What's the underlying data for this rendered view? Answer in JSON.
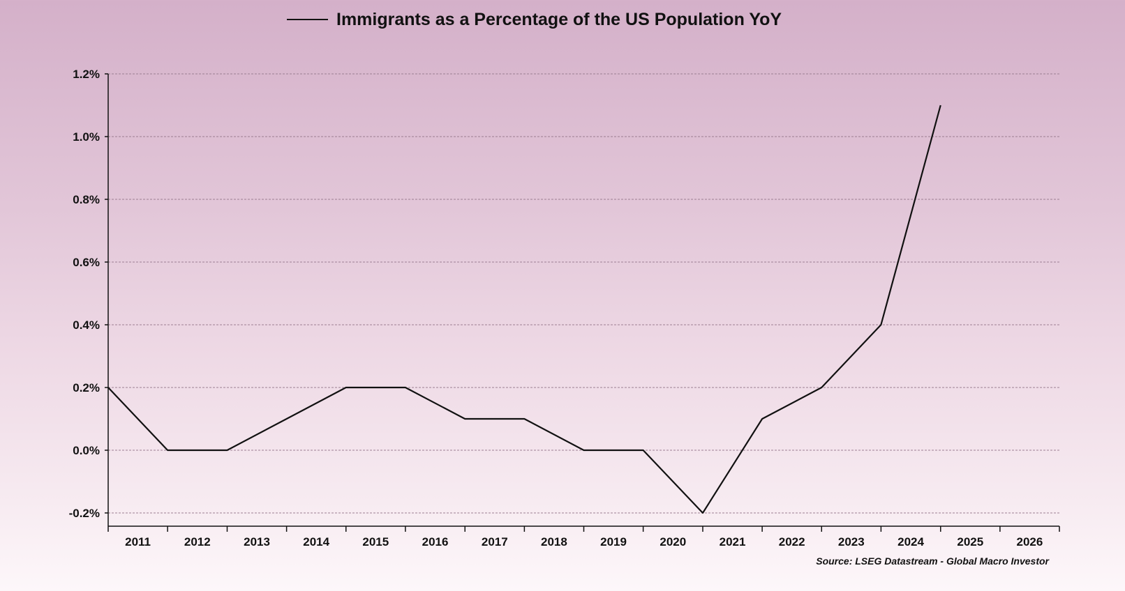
{
  "chart_data": {
    "type": "line",
    "title": "Immigrants as a Percentage of the US Population YoY",
    "legend_placement": "top-center",
    "source": "Source: LSEG Datastream - Global Macro Investor",
    "grid": true,
    "y_ticks": [
      "1.2%",
      "1.0%",
      "0.8%",
      "0.6%",
      "0.4%",
      "0.2%",
      "0.0%",
      "-0.2%"
    ],
    "y_tick_values": [
      1.2,
      1.0,
      0.8,
      0.6,
      0.4,
      0.2,
      0.0,
      -0.2
    ],
    "ylim": [
      -0.2,
      1.2
    ],
    "x_ticks": [
      "2011",
      "2012",
      "2013",
      "2014",
      "2015",
      "2016",
      "2017",
      "2018",
      "2019",
      "2020",
      "2021",
      "2022",
      "2023",
      "2024",
      "2025",
      "2026"
    ],
    "xlim": [
      "2011-01-01",
      "2027-01-01"
    ],
    "series": [
      {
        "color": "#111111",
        "points": [
          {
            "x": "2011-01-01",
            "y": 0.2
          },
          {
            "x": "2012-01-01",
            "y": 0.0
          },
          {
            "x": "2013-01-01",
            "y": 0.0
          },
          {
            "x": "2014-01-01",
            "y": 0.1
          },
          {
            "x": "2015-01-01",
            "y": 0.2
          },
          {
            "x": "2016-01-01",
            "y": 0.2
          },
          {
            "x": "2017-01-01",
            "y": 0.1
          },
          {
            "x": "2018-01-01",
            "y": 0.1
          },
          {
            "x": "2019-01-01",
            "y": 0.0
          },
          {
            "x": "2020-01-01",
            "y": 0.0
          },
          {
            "x": "2021-01-01",
            "y": -0.2
          },
          {
            "x": "2022-01-01",
            "y": 0.1
          },
          {
            "x": "2023-01-01",
            "y": 0.2
          },
          {
            "x": "2024-01-01",
            "y": 0.4
          },
          {
            "x": "2025-01-01",
            "y": 1.1
          }
        ]
      }
    ]
  }
}
